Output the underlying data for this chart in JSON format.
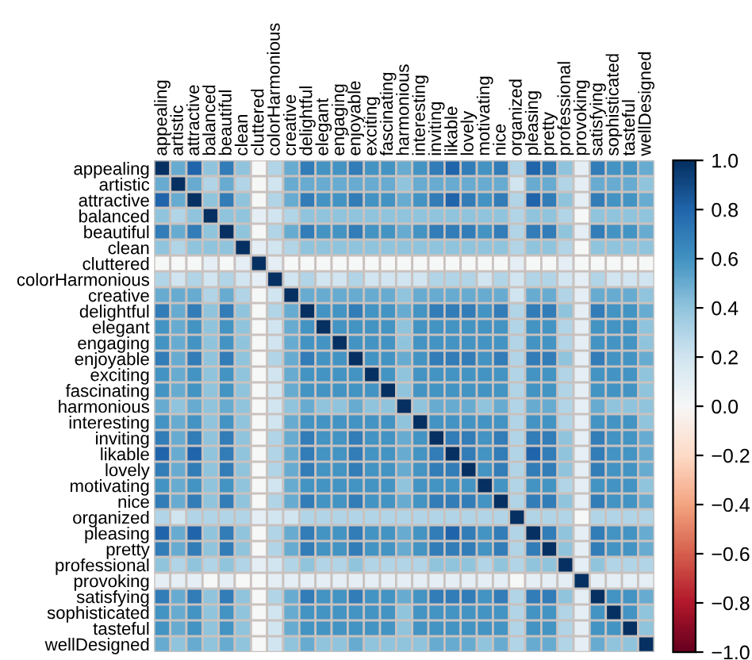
{
  "chart_data": {
    "type": "heatmap",
    "categories": [
      "appealing",
      "artistic",
      "attractive",
      "balanced",
      "beautiful",
      "clean",
      "cluttered",
      "colorHarmonious",
      "creative",
      "delightful",
      "elegant",
      "engaging",
      "enjoyable",
      "exciting",
      "fascinating",
      "harmonious",
      "interesting",
      "inviting",
      "likable",
      "lovely",
      "motivating",
      "nice",
      "organized",
      "pleasing",
      "pretty",
      "professional",
      "provoking",
      "satisfying",
      "sophisticated",
      "tasteful",
      "wellDesigned"
    ],
    "y_categories": [
      "appealing",
      "artistic",
      "attractive",
      "balanced",
      "beautiful",
      "clean",
      "cluttered",
      "colorHarmonious",
      "creative",
      "delightful",
      "elegant",
      "engaging",
      "enjoyable",
      "exciting",
      "fascinating",
      "harmonious",
      "interesting",
      "inviting",
      "likable",
      "lovely",
      "motivating",
      "nice",
      "organized",
      "pleasing",
      "pretty",
      "professional",
      "provoking",
      "satisfying",
      "sophisticated",
      "tasteful",
      "wellDesigned"
    ],
    "cells": [
      [
        1,
        0.5,
        0.8,
        0.4,
        0.7,
        0.4,
        0,
        0.3,
        0.5,
        0.7,
        0.6,
        0.6,
        0.7,
        0.6,
        0.6,
        0.5,
        0.6,
        0.7,
        0.8,
        0.7,
        0.6,
        0.7,
        0.3,
        0.8,
        0.7,
        0.4,
        0.1,
        0.7,
        0.6,
        0.6,
        0.5
      ],
      [
        0.5,
        1,
        0.5,
        0.3,
        0.5,
        0.3,
        0,
        0.2,
        0.5,
        0.5,
        0.5,
        0.5,
        0.5,
        0.5,
        0.5,
        0.4,
        0.5,
        0.5,
        0.5,
        0.5,
        0.5,
        0.5,
        0.2,
        0.5,
        0.5,
        0.3,
        0.1,
        0.5,
        0.5,
        0.5,
        0.4
      ],
      [
        0.8,
        0.5,
        1,
        0.4,
        0.7,
        0.4,
        0,
        0.3,
        0.5,
        0.7,
        0.6,
        0.6,
        0.7,
        0.6,
        0.6,
        0.5,
        0.6,
        0.7,
        0.8,
        0.7,
        0.6,
        0.7,
        0.3,
        0.8,
        0.7,
        0.4,
        0.1,
        0.7,
        0.6,
        0.6,
        0.5
      ],
      [
        0.4,
        0.3,
        0.4,
        1,
        0.4,
        0.4,
        0.1,
        0.2,
        0.3,
        0.4,
        0.4,
        0.4,
        0.4,
        0.4,
        0.4,
        0.4,
        0.4,
        0.4,
        0.4,
        0.4,
        0.4,
        0.4,
        0.3,
        0.4,
        0.4,
        0.3,
        0,
        0.4,
        0.4,
        0.4,
        0.4
      ],
      [
        0.7,
        0.5,
        0.7,
        0.4,
        1,
        0.4,
        0,
        0.3,
        0.5,
        0.7,
        0.6,
        0.6,
        0.7,
        0.6,
        0.6,
        0.5,
        0.6,
        0.7,
        0.7,
        0.7,
        0.6,
        0.7,
        0.3,
        0.7,
        0.7,
        0.4,
        0.1,
        0.7,
        0.6,
        0.6,
        0.5
      ],
      [
        0.4,
        0.3,
        0.4,
        0.4,
        0.4,
        1,
        0.1,
        0.2,
        0.3,
        0.4,
        0.4,
        0.4,
        0.4,
        0.4,
        0.4,
        0.4,
        0.4,
        0.4,
        0.4,
        0.4,
        0.4,
        0.4,
        0.3,
        0.4,
        0.4,
        0.3,
        0,
        0.4,
        0.4,
        0.4,
        0.4
      ],
      [
        0,
        0,
        0,
        0.1,
        0,
        0.1,
        1,
        0.1,
        0,
        0,
        0,
        0,
        0,
        0,
        0,
        0,
        0,
        0,
        0,
        0,
        0,
        0,
        0.1,
        0,
        0,
        0.1,
        0,
        0,
        0,
        0,
        0
      ],
      [
        0.3,
        0.2,
        0.3,
        0.2,
        0.3,
        0.2,
        0.1,
        1,
        0.2,
        0.3,
        0.2,
        0.2,
        0.3,
        0.2,
        0.2,
        0.2,
        0.2,
        0.3,
        0.3,
        0.3,
        0.2,
        0.3,
        0.2,
        0.3,
        0.3,
        0.2,
        0.1,
        0.3,
        0.2,
        0.2,
        0.2
      ],
      [
        0.5,
        0.5,
        0.5,
        0.3,
        0.5,
        0.3,
        0,
        0.2,
        1,
        0.5,
        0.5,
        0.5,
        0.5,
        0.5,
        0.5,
        0.4,
        0.5,
        0.5,
        0.5,
        0.5,
        0.5,
        0.5,
        0.2,
        0.5,
        0.5,
        0.3,
        0.1,
        0.5,
        0.5,
        0.5,
        0.4
      ],
      [
        0.7,
        0.5,
        0.7,
        0.4,
        0.7,
        0.4,
        0,
        0.3,
        0.5,
        1,
        0.6,
        0.6,
        0.7,
        0.6,
        0.6,
        0.5,
        0.6,
        0.7,
        0.7,
        0.7,
        0.6,
        0.7,
        0.3,
        0.7,
        0.7,
        0.4,
        0.1,
        0.7,
        0.6,
        0.6,
        0.5
      ],
      [
        0.6,
        0.5,
        0.6,
        0.4,
        0.6,
        0.4,
        0,
        0.2,
        0.5,
        0.6,
        1,
        0.6,
        0.6,
        0.6,
        0.6,
        0.4,
        0.6,
        0.6,
        0.6,
        0.6,
        0.6,
        0.6,
        0.3,
        0.6,
        0.6,
        0.3,
        0.1,
        0.6,
        0.6,
        0.6,
        0.4
      ],
      [
        0.6,
        0.5,
        0.6,
        0.4,
        0.6,
        0.4,
        0,
        0.2,
        0.5,
        0.6,
        0.6,
        1,
        0.6,
        0.6,
        0.6,
        0.4,
        0.6,
        0.6,
        0.6,
        0.6,
        0.6,
        0.6,
        0.3,
        0.6,
        0.6,
        0.3,
        0.1,
        0.6,
        0.6,
        0.6,
        0.4
      ],
      [
        0.7,
        0.5,
        0.7,
        0.4,
        0.7,
        0.4,
        0,
        0.3,
        0.5,
        0.7,
        0.6,
        0.6,
        1,
        0.6,
        0.6,
        0.5,
        0.6,
        0.7,
        0.7,
        0.7,
        0.6,
        0.7,
        0.3,
        0.7,
        0.7,
        0.4,
        0.1,
        0.7,
        0.6,
        0.6,
        0.5
      ],
      [
        0.6,
        0.5,
        0.6,
        0.4,
        0.6,
        0.4,
        0,
        0.2,
        0.5,
        0.6,
        0.6,
        0.6,
        0.6,
        1,
        0.6,
        0.4,
        0.6,
        0.6,
        0.6,
        0.6,
        0.6,
        0.6,
        0.3,
        0.6,
        0.6,
        0.3,
        0.1,
        0.6,
        0.6,
        0.6,
        0.4
      ],
      [
        0.6,
        0.5,
        0.6,
        0.4,
        0.6,
        0.4,
        0,
        0.2,
        0.5,
        0.6,
        0.6,
        0.6,
        0.6,
        0.6,
        1,
        0.4,
        0.6,
        0.6,
        0.6,
        0.6,
        0.6,
        0.6,
        0.3,
        0.6,
        0.6,
        0.3,
        0.1,
        0.6,
        0.6,
        0.6,
        0.4
      ],
      [
        0.5,
        0.4,
        0.5,
        0.4,
        0.5,
        0.4,
        0,
        0.2,
        0.4,
        0.5,
        0.4,
        0.4,
        0.5,
        0.4,
        0.4,
        1,
        0.4,
        0.5,
        0.5,
        0.5,
        0.4,
        0.5,
        0.3,
        0.5,
        0.5,
        0.3,
        0.1,
        0.5,
        0.4,
        0.4,
        0.4
      ],
      [
        0.6,
        0.5,
        0.6,
        0.4,
        0.6,
        0.4,
        0,
        0.2,
        0.5,
        0.6,
        0.6,
        0.6,
        0.6,
        0.6,
        0.6,
        0.4,
        1,
        0.6,
        0.6,
        0.6,
        0.6,
        0.6,
        0.3,
        0.6,
        0.6,
        0.3,
        0.1,
        0.6,
        0.6,
        0.6,
        0.4
      ],
      [
        0.7,
        0.5,
        0.7,
        0.4,
        0.7,
        0.4,
        0,
        0.3,
        0.5,
        0.7,
        0.6,
        0.6,
        0.7,
        0.6,
        0.6,
        0.5,
        0.6,
        1,
        0.7,
        0.7,
        0.6,
        0.7,
        0.3,
        0.7,
        0.7,
        0.4,
        0.1,
        0.7,
        0.6,
        0.6,
        0.5
      ],
      [
        0.8,
        0.5,
        0.8,
        0.4,
        0.7,
        0.4,
        0,
        0.3,
        0.5,
        0.7,
        0.6,
        0.6,
        0.7,
        0.6,
        0.6,
        0.5,
        0.6,
        0.7,
        1,
        0.7,
        0.6,
        0.7,
        0.3,
        0.8,
        0.7,
        0.4,
        0.1,
        0.7,
        0.6,
        0.6,
        0.5
      ],
      [
        0.7,
        0.5,
        0.7,
        0.4,
        0.7,
        0.4,
        0,
        0.3,
        0.5,
        0.7,
        0.6,
        0.6,
        0.7,
        0.6,
        0.6,
        0.5,
        0.6,
        0.7,
        0.7,
        1,
        0.6,
        0.7,
        0.3,
        0.7,
        0.7,
        0.4,
        0.1,
        0.7,
        0.6,
        0.6,
        0.5
      ],
      [
        0.6,
        0.5,
        0.6,
        0.4,
        0.6,
        0.4,
        0,
        0.2,
        0.5,
        0.6,
        0.6,
        0.6,
        0.6,
        0.6,
        0.6,
        0.4,
        0.6,
        0.6,
        0.6,
        0.6,
        1,
        0.6,
        0.3,
        0.6,
        0.6,
        0.3,
        0.1,
        0.6,
        0.6,
        0.6,
        0.4
      ],
      [
        0.7,
        0.5,
        0.7,
        0.4,
        0.7,
        0.4,
        0,
        0.3,
        0.5,
        0.7,
        0.6,
        0.6,
        0.7,
        0.6,
        0.6,
        0.5,
        0.6,
        0.7,
        0.7,
        0.7,
        0.6,
        1,
        0.3,
        0.7,
        0.7,
        0.4,
        0.1,
        0.7,
        0.6,
        0.6,
        0.5
      ],
      [
        0.3,
        0.2,
        0.3,
        0.3,
        0.3,
        0.3,
        0.1,
        0.2,
        0.2,
        0.3,
        0.3,
        0.3,
        0.3,
        0.3,
        0.3,
        0.3,
        0.3,
        0.3,
        0.3,
        0.3,
        0.3,
        0.3,
        1,
        0.3,
        0.3,
        0.3,
        0,
        0.3,
        0.3,
        0.3,
        0.3
      ],
      [
        0.8,
        0.5,
        0.8,
        0.4,
        0.7,
        0.4,
        0,
        0.3,
        0.5,
        0.7,
        0.6,
        0.6,
        0.7,
        0.6,
        0.6,
        0.5,
        0.6,
        0.7,
        0.8,
        0.7,
        0.6,
        0.7,
        0.3,
        1,
        0.7,
        0.4,
        0.1,
        0.7,
        0.6,
        0.6,
        0.5
      ],
      [
        0.7,
        0.5,
        0.7,
        0.4,
        0.7,
        0.4,
        0,
        0.3,
        0.5,
        0.7,
        0.6,
        0.6,
        0.7,
        0.6,
        0.6,
        0.5,
        0.6,
        0.7,
        0.7,
        0.7,
        0.6,
        0.7,
        0.3,
        0.7,
        1,
        0.4,
        0.1,
        0.7,
        0.6,
        0.6,
        0.5
      ],
      [
        0.4,
        0.3,
        0.4,
        0.3,
        0.4,
        0.3,
        0.1,
        0.2,
        0.3,
        0.4,
        0.3,
        0.3,
        0.4,
        0.3,
        0.3,
        0.3,
        0.3,
        0.4,
        0.4,
        0.4,
        0.3,
        0.4,
        0.3,
        0.4,
        0.4,
        1,
        0.1,
        0.4,
        0.3,
        0.3,
        0.3
      ],
      [
        0.1,
        0.1,
        0.1,
        0,
        0.1,
        0,
        0,
        0.1,
        0.1,
        0.1,
        0.1,
        0.1,
        0.1,
        0.1,
        0.1,
        0.1,
        0.1,
        0.1,
        0.1,
        0.1,
        0.1,
        0.1,
        0,
        0.1,
        0.1,
        0.1,
        1,
        0.1,
        0.1,
        0.1,
        0.1
      ],
      [
        0.7,
        0.5,
        0.7,
        0.4,
        0.7,
        0.4,
        0,
        0.3,
        0.5,
        0.7,
        0.6,
        0.6,
        0.7,
        0.6,
        0.6,
        0.5,
        0.6,
        0.7,
        0.7,
        0.7,
        0.6,
        0.7,
        0.3,
        0.7,
        0.7,
        0.4,
        0.1,
        1,
        0.6,
        0.6,
        0.5
      ],
      [
        0.6,
        0.5,
        0.6,
        0.4,
        0.6,
        0.4,
        0,
        0.2,
        0.5,
        0.6,
        0.6,
        0.6,
        0.6,
        0.6,
        0.6,
        0.4,
        0.6,
        0.6,
        0.6,
        0.6,
        0.6,
        0.6,
        0.3,
        0.6,
        0.6,
        0.3,
        0.1,
        0.6,
        1,
        0.6,
        0.4
      ],
      [
        0.6,
        0.5,
        0.6,
        0.4,
        0.6,
        0.4,
        0,
        0.2,
        0.5,
        0.6,
        0.6,
        0.6,
        0.6,
        0.6,
        0.6,
        0.4,
        0.6,
        0.6,
        0.6,
        0.6,
        0.6,
        0.6,
        0.3,
        0.6,
        0.6,
        0.3,
        0.1,
        0.6,
        0.6,
        1,
        0.4
      ],
      [
        0.5,
        0.4,
        0.5,
        0.4,
        0.5,
        0.4,
        0,
        0.2,
        0.4,
        0.5,
        0.4,
        0.4,
        0.5,
        0.4,
        0.4,
        0.4,
        0.4,
        0.5,
        0.5,
        0.5,
        0.4,
        0.5,
        0.3,
        0.5,
        0.5,
        0.3,
        0.1,
        0.5,
        0.4,
        0.4,
        1
      ]
    ],
    "clim": [
      -1,
      1
    ],
    "cticks": [
      {
        "value": 1,
        "label": "1.0"
      },
      {
        "value": 0.8,
        "label": "0.8"
      },
      {
        "value": 0.6,
        "label": "0.6"
      },
      {
        "value": 0.4,
        "label": "0.4"
      },
      {
        "value": 0.2,
        "label": "0.2"
      },
      {
        "value": 0,
        "label": "0.0"
      },
      {
        "value": -0.2,
        "label": "−0.2"
      },
      {
        "value": -0.4,
        "label": "−0.4"
      },
      {
        "value": -0.6,
        "label": "−0.6"
      },
      {
        "value": -0.8,
        "label": "−0.8"
      },
      {
        "value": -1,
        "label": "−1.0"
      }
    ]
  }
}
